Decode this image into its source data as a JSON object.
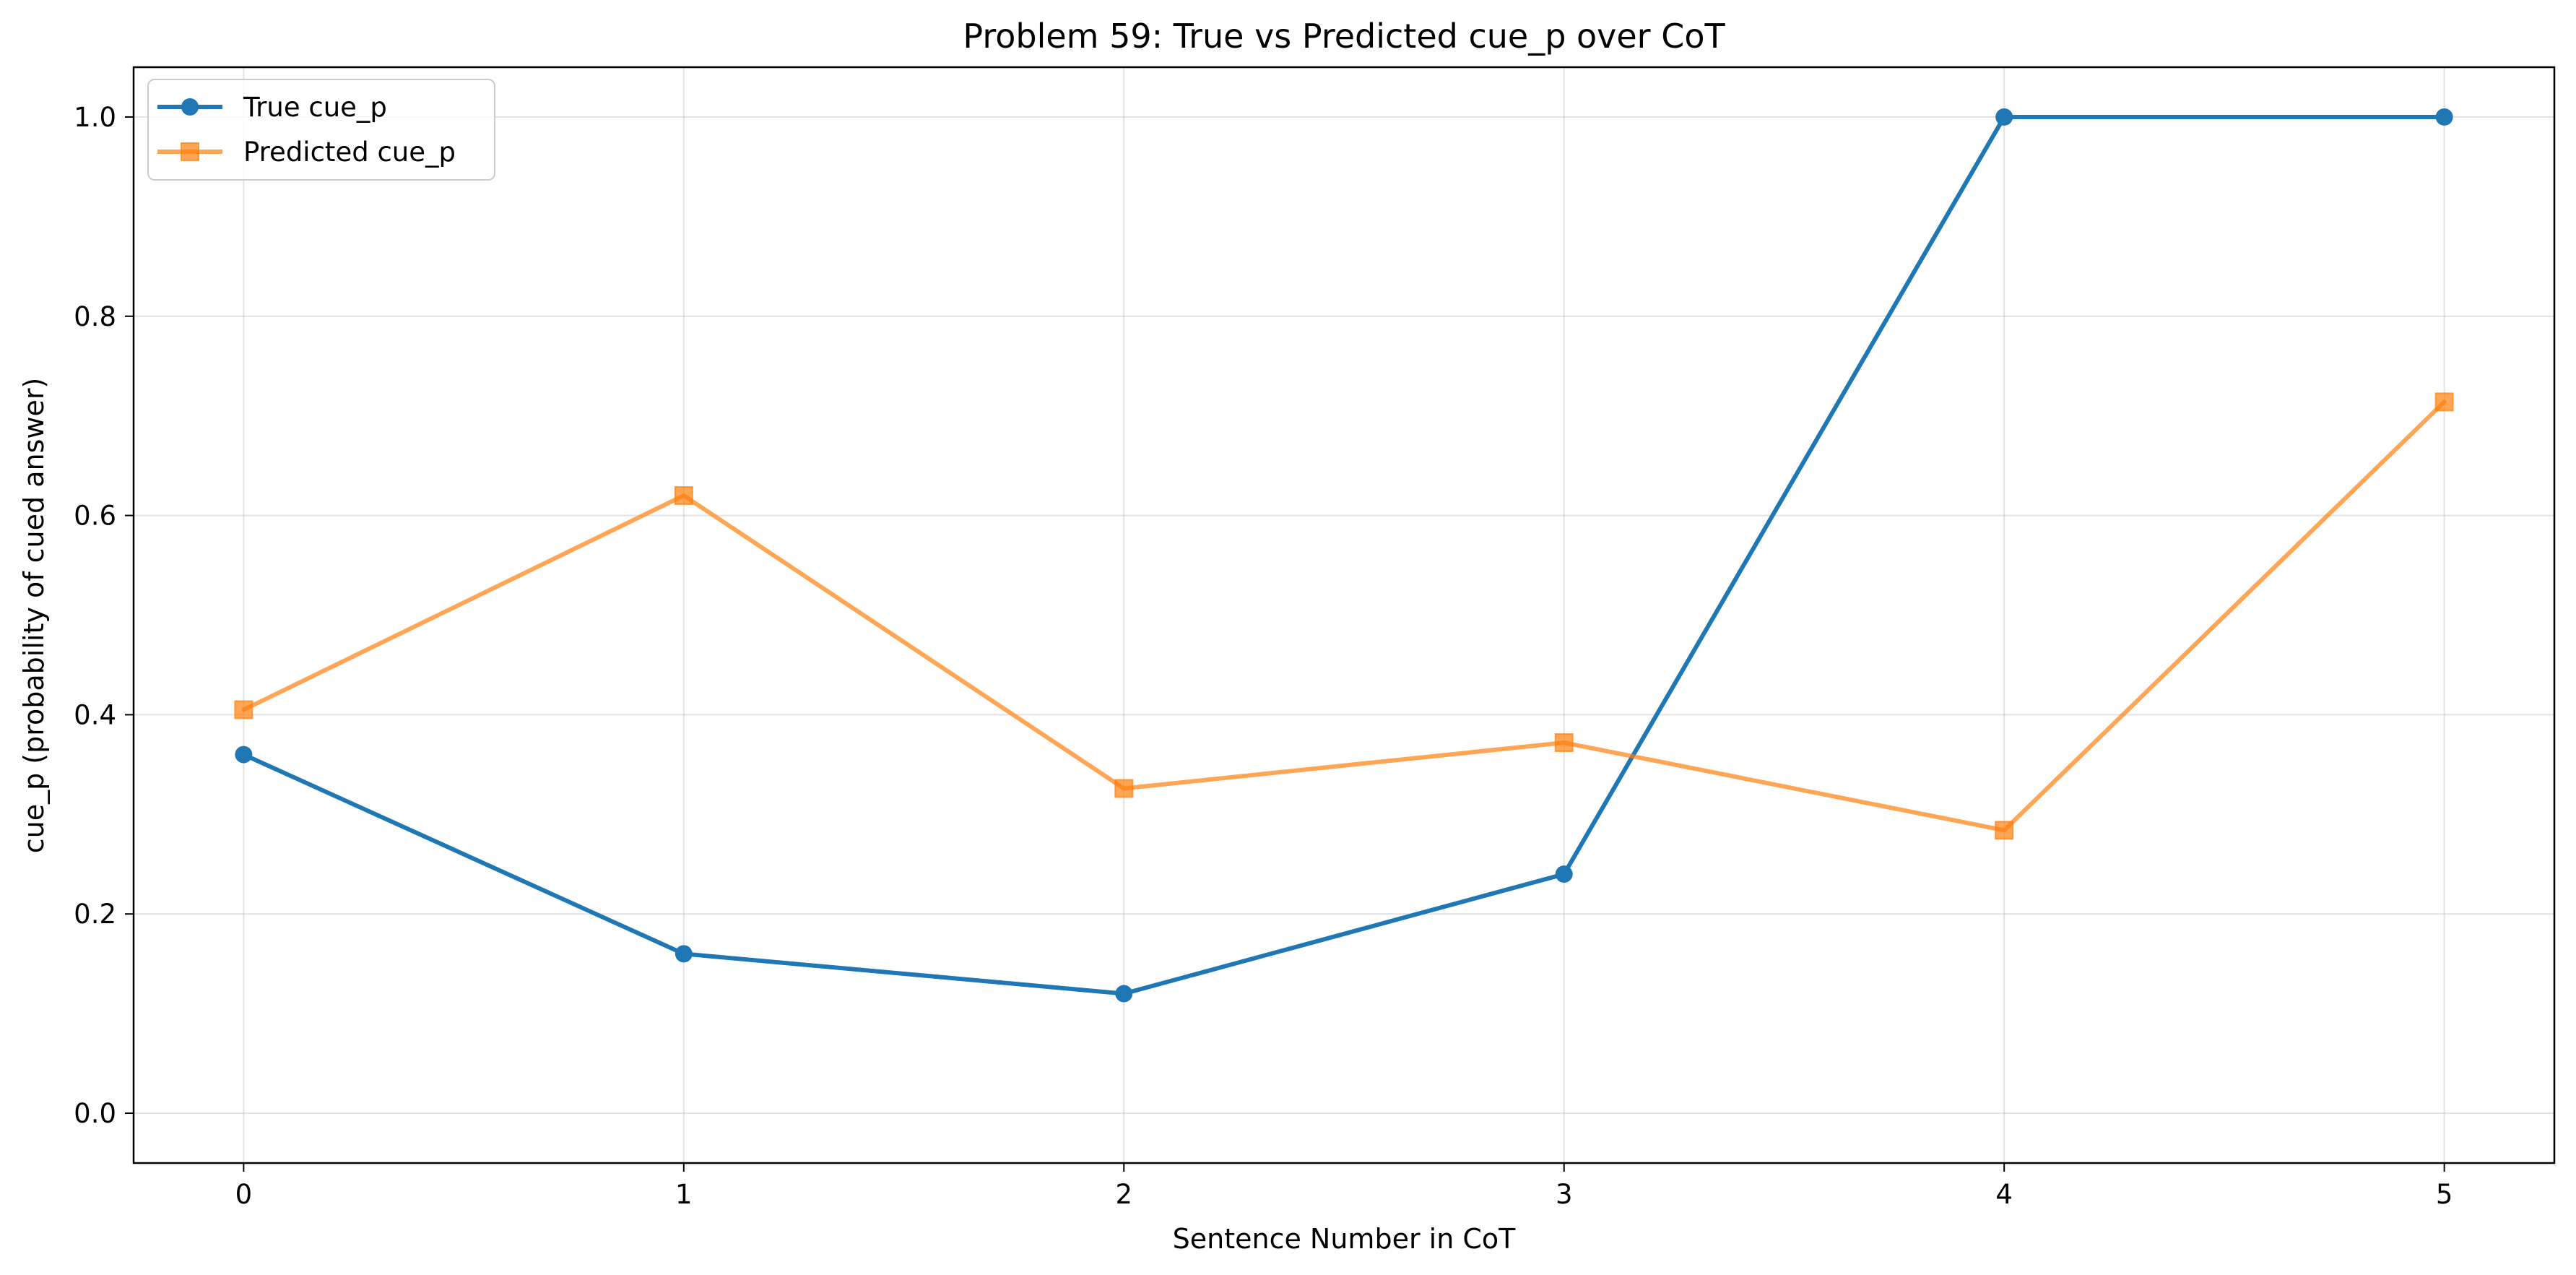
{
  "chart_data": {
    "type": "line",
    "title": "Problem 59: True vs Predicted cue_p over CoT",
    "xlabel": "Sentence Number in CoT",
    "ylabel": "cue_p (probability of cued answer)",
    "x": [
      0,
      1,
      2,
      3,
      4,
      5
    ],
    "xlim": [
      -0.25,
      5.25
    ],
    "ylim": [
      -0.05,
      1.05
    ],
    "xticks": [
      "0",
      "1",
      "2",
      "3",
      "4",
      "5"
    ],
    "yticks": [
      "0.0",
      "0.2",
      "0.4",
      "0.6",
      "0.8",
      "1.0"
    ],
    "grid": true,
    "legend_position": "top-left",
    "series": [
      {
        "name": "True cue_p",
        "values": [
          0.36,
          0.16,
          0.12,
          0.24,
          1.0,
          1.0
        ],
        "color": "#1f77b4",
        "marker": "circle"
      },
      {
        "name": "Predicted cue_p",
        "values": [
          0.405,
          0.62,
          0.326,
          0.372,
          0.284,
          0.714
        ],
        "color": "#ff7f0e",
        "marker": "square"
      }
    ]
  }
}
